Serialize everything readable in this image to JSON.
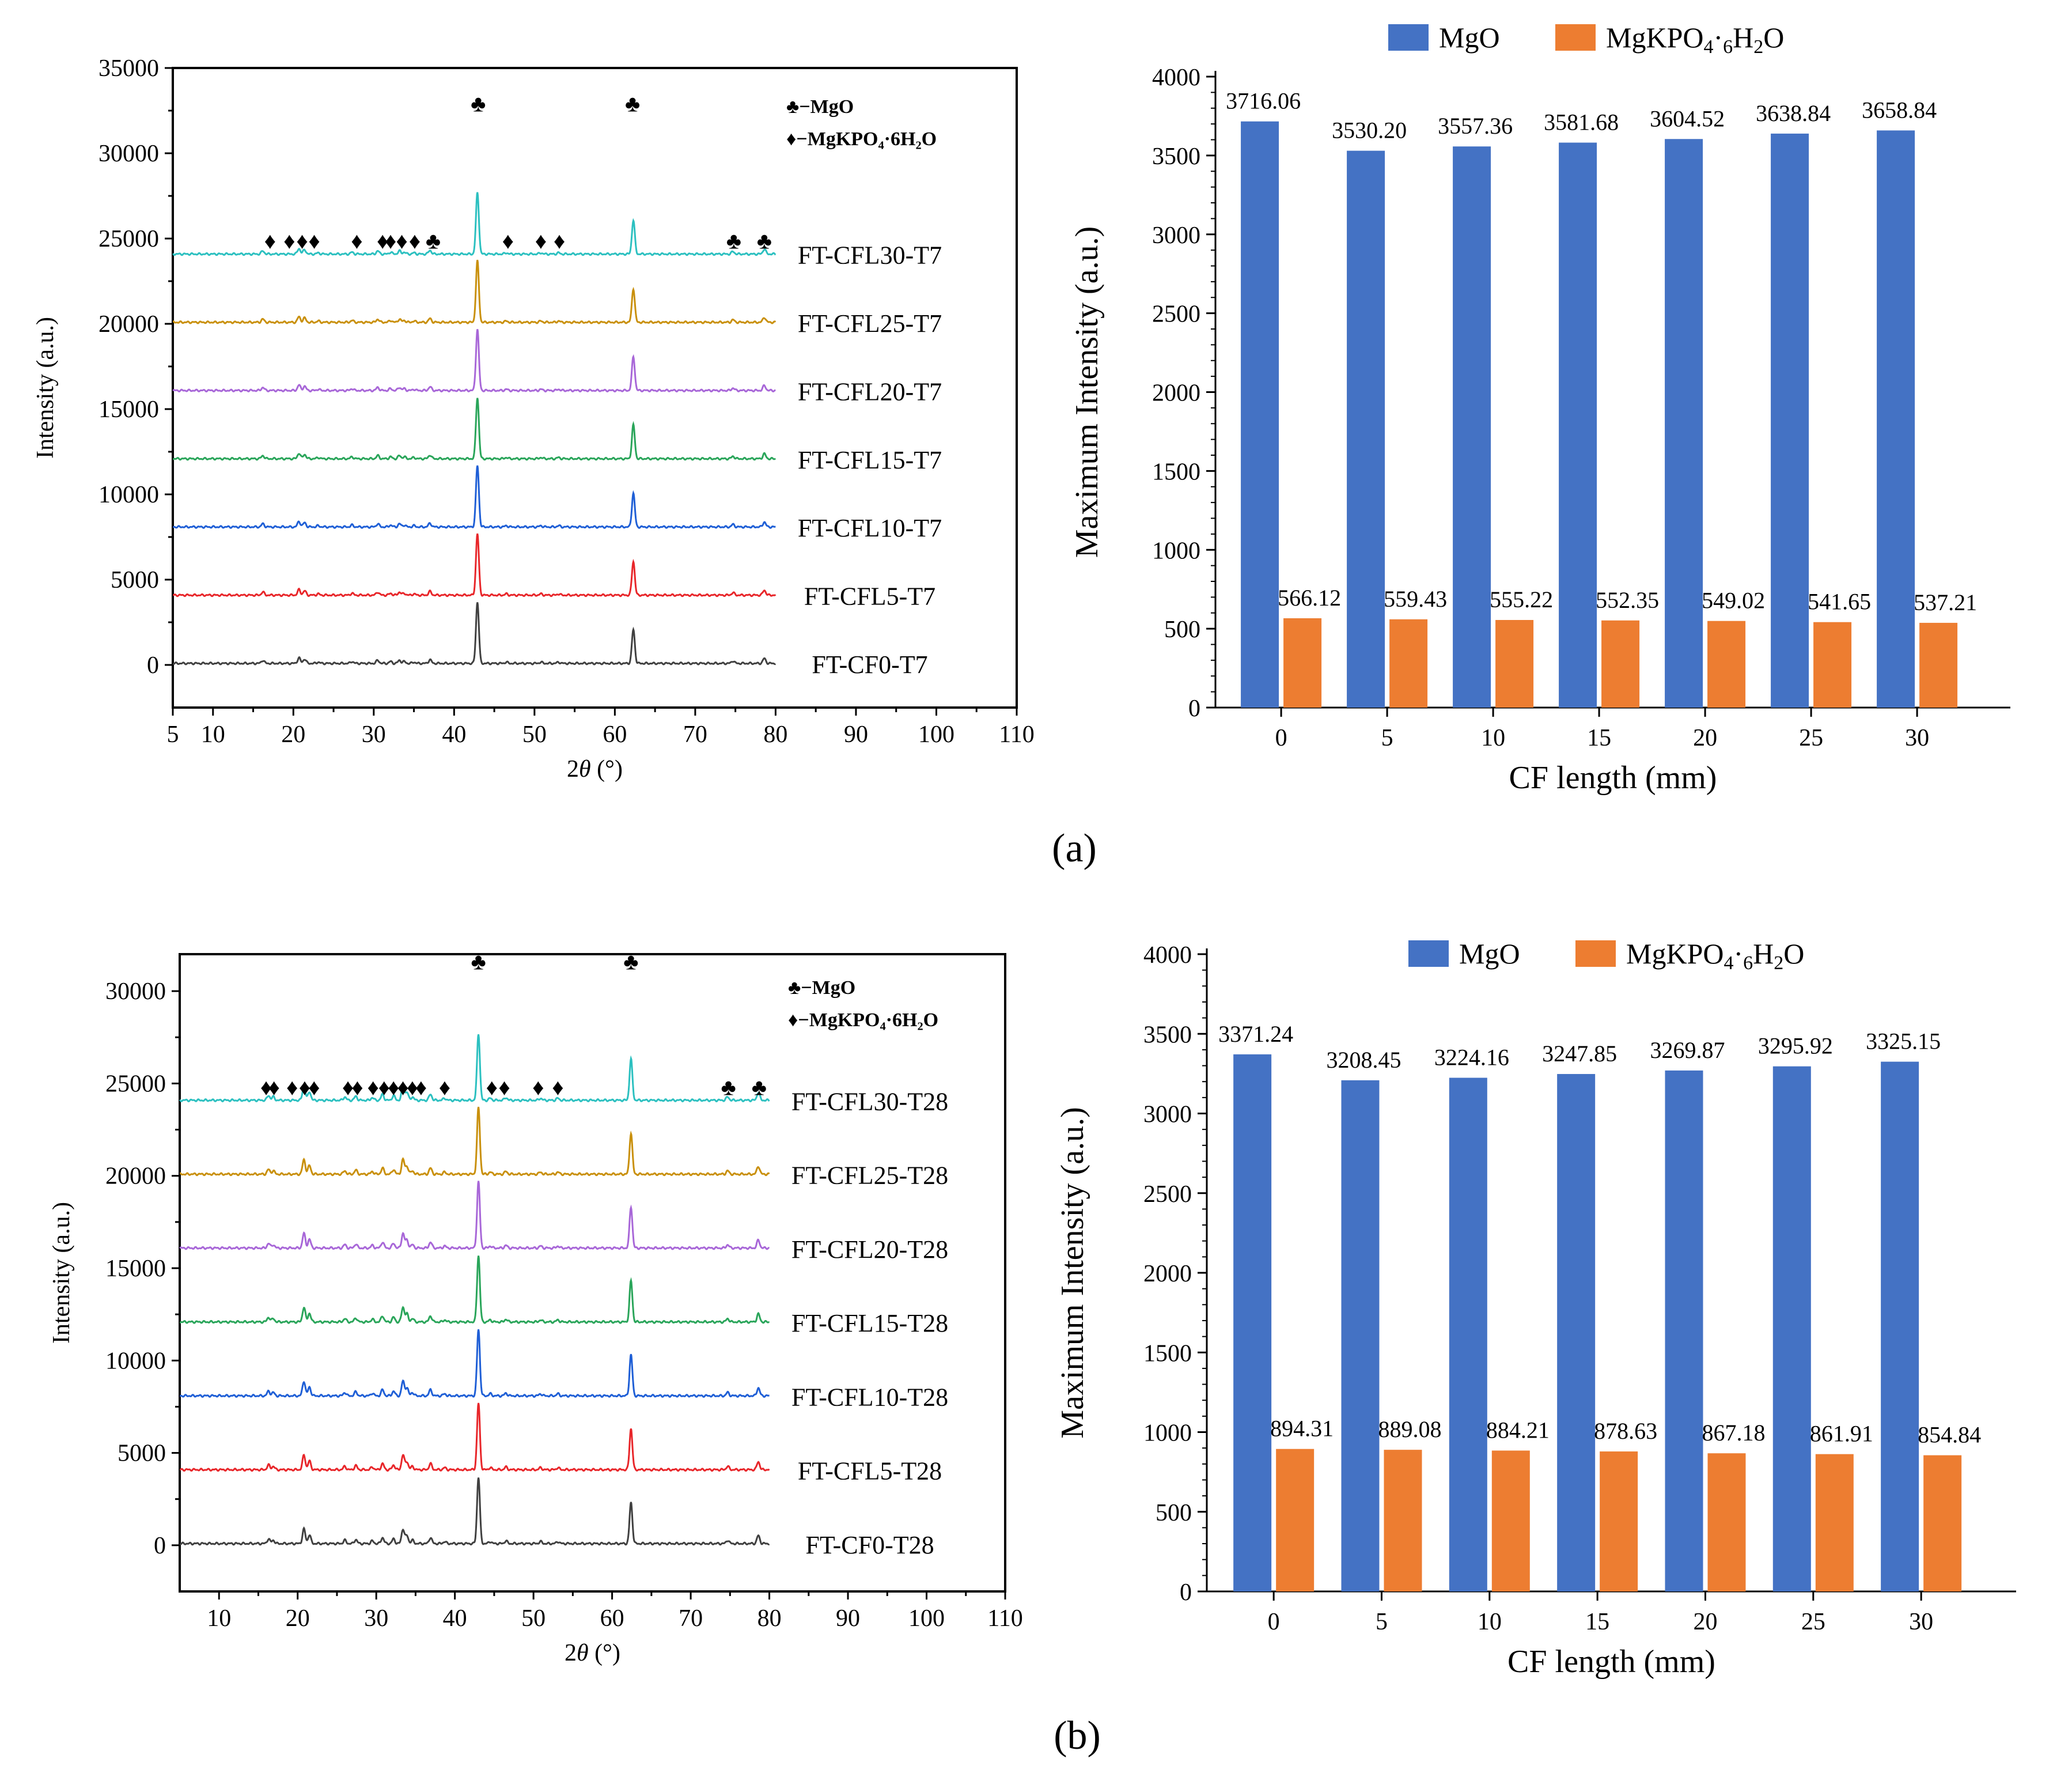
{
  "panel_labels": [
    "(a)",
    "(b)"
  ],
  "chart_data": [
    {
      "id": "xrd_a",
      "type": "line",
      "xlabel": "2θ (°)",
      "ylabel": "Intensity (a.u.)",
      "xlim": [
        5,
        110
      ],
      "ylim": [
        -2500,
        35000
      ],
      "xticks": [
        5,
        10,
        20,
        30,
        40,
        50,
        60,
        70,
        80,
        90,
        100,
        110
      ],
      "yticks": [
        0,
        5000,
        10000,
        15000,
        20000,
        25000,
        30000,
        35000
      ],
      "legend": [
        {
          "symbol": "♣",
          "text": "−MgO"
        },
        {
          "symbol": "♦",
          "text": "−MgKPO₄·6H₂O"
        }
      ],
      "series": [
        {
          "name": "FT-CF0-T7",
          "offset": 0,
          "color": "#404040"
        },
        {
          "name": "FT-CFL5-T7",
          "offset": 4000,
          "color": "#e8262a"
        },
        {
          "name": "FT-CFL10-T7",
          "offset": 8000,
          "color": "#1f5fd6"
        },
        {
          "name": "FT-CFL15-T7",
          "offset": 12000,
          "color": "#2aa55a"
        },
        {
          "name": "FT-CFL20-T7",
          "offset": 16000,
          "color": "#a867d8"
        },
        {
          "name": "FT-CFL25-T7",
          "offset": 20000,
          "color": "#c9900c"
        },
        {
          "name": "FT-CFL30-T7",
          "offset": 24000,
          "color": "#2cc0c0"
        }
      ],
      "peaks": [
        [
          16.2,
          0.05
        ],
        [
          20.7,
          0.09
        ],
        [
          21.4,
          0.07
        ],
        [
          23.1,
          0.02
        ],
        [
          27.3,
          0.03
        ],
        [
          30.5,
          0.05
        ],
        [
          32.1,
          0.03
        ],
        [
          33.2,
          0.05
        ],
        [
          33.8,
          0.03
        ],
        [
          35.0,
          0.02
        ],
        [
          37.0,
          0.06
        ],
        [
          42.9,
          1.0
        ],
        [
          46.5,
          0.02
        ],
        [
          50.8,
          0.02
        ],
        [
          53.0,
          0.02
        ],
        [
          62.3,
          0.55
        ],
        [
          74.7,
          0.04
        ],
        [
          78.6,
          0.08
        ]
      ],
      "markers": [
        {
          "symbol": "♦",
          "x": [
            17.1,
            19.5,
            21.1,
            22.6,
            27.9,
            31.1,
            32.1,
            33.5,
            35.1,
            46.7,
            50.8,
            53.1
          ]
        },
        {
          "symbol": "♣",
          "x": [
            37.4,
            43.0,
            62.2,
            74.8,
            78.6
          ]
        }
      ]
    },
    {
      "id": "bar_a",
      "type": "bar",
      "xlabel": "CF length (mm)",
      "ylabel": "Maximum Intensity (a.u.)",
      "ylim": [
        0,
        4000
      ],
      "yticks": [
        0,
        500,
        1000,
        1500,
        2000,
        2500,
        3000,
        3500,
        4000
      ],
      "categories": [
        "0",
        "5",
        "10",
        "15",
        "20",
        "25",
        "30"
      ],
      "legend": [
        "MgO",
        "MgKPO4·6H2O"
      ],
      "series": [
        {
          "name": "MgO",
          "color": "#4472c4",
          "values": [
            3716.06,
            3530.2,
            3557.36,
            3581.68,
            3604.52,
            3638.84,
            3658.84
          ],
          "labels": [
            "3716.06",
            "3530.20",
            "3557.36",
            "3581.68",
            "3604.52",
            "3638.84",
            "3658.84"
          ]
        },
        {
          "name": "MgKPO4·6H2O",
          "color": "#ed7d31",
          "values": [
            566.12,
            559.43,
            555.22,
            552.35,
            549.02,
            541.65,
            537.21
          ],
          "labels": [
            "566.12",
            "559.43",
            "555.22",
            "552.35",
            "549.02",
            "541.65",
            "537.21"
          ]
        }
      ]
    },
    {
      "id": "xrd_b",
      "type": "line",
      "xlabel": "2θ (°)",
      "ylabel": "Intensity (a.u.)",
      "xlim": [
        5,
        110
      ],
      "ylim": [
        -2500,
        32000
      ],
      "xticks": [
        10,
        20,
        30,
        40,
        50,
        60,
        70,
        80,
        90,
        100,
        110
      ],
      "yticks": [
        0,
        5000,
        10000,
        15000,
        20000,
        25000,
        30000
      ],
      "legend": [
        {
          "symbol": "♣",
          "text": "−MgO"
        },
        {
          "symbol": "♦",
          "text": "−MgKPO₄·6H₂O"
        }
      ],
      "series": [
        {
          "name": "FT-CF0-T28",
          "offset": 0,
          "color": "#404040"
        },
        {
          "name": "FT-CFL5-T28",
          "offset": 4000,
          "color": "#e8262a"
        },
        {
          "name": "FT-CFL10-T28",
          "offset": 8000,
          "color": "#1f5fd6"
        },
        {
          "name": "FT-CFL15-T28",
          "offset": 12000,
          "color": "#2aa55a"
        },
        {
          "name": "FT-CFL20-T28",
          "offset": 16000,
          "color": "#a867d8"
        },
        {
          "name": "FT-CFL25-T28",
          "offset": 20000,
          "color": "#c9900c"
        },
        {
          "name": "FT-CFL30-T28",
          "offset": 24000,
          "color": "#2cc0c0"
        }
      ],
      "peaks": [
        [
          16.3,
          0.07
        ],
        [
          16.9,
          0.05
        ],
        [
          20.8,
          0.22
        ],
        [
          21.5,
          0.13
        ],
        [
          26.0,
          0.05
        ],
        [
          27.4,
          0.06
        ],
        [
          29.5,
          0.04
        ],
        [
          30.8,
          0.09
        ],
        [
          32.2,
          0.07
        ],
        [
          33.4,
          0.22
        ],
        [
          33.9,
          0.12
        ],
        [
          34.6,
          0.05
        ],
        [
          36.9,
          0.09
        ],
        [
          38.7,
          0.03
        ],
        [
          43.0,
          1.0
        ],
        [
          44.5,
          0.03
        ],
        [
          46.5,
          0.04
        ],
        [
          50.9,
          0.03
        ],
        [
          53.1,
          0.03
        ],
        [
          62.4,
          0.62
        ],
        [
          74.7,
          0.05
        ],
        [
          78.6,
          0.12
        ]
      ],
      "markers": [
        {
          "symbol": "♦",
          "x": [
            16.0,
            17.0,
            19.3,
            20.9,
            22.1,
            26.4,
            27.6,
            29.6,
            31.0,
            32.2,
            33.4,
            34.6,
            35.7,
            38.7,
            44.7,
            46.3,
            50.6,
            53.1
          ]
        },
        {
          "symbol": "♣",
          "x": [
            43.0,
            62.4,
            74.8,
            78.7
          ]
        }
      ]
    },
    {
      "id": "bar_b",
      "type": "bar",
      "xlabel": "CF length (mm)",
      "ylabel": "Maximum Intensity (a.u.)",
      "ylim": [
        0,
        4000
      ],
      "yticks": [
        0,
        500,
        1000,
        1500,
        2000,
        2500,
        3000,
        3500,
        4000
      ],
      "categories": [
        "0",
        "5",
        "10",
        "15",
        "20",
        "25",
        "30"
      ],
      "legend": [
        "MgO",
        "MgKPO4·6H2O"
      ],
      "series": [
        {
          "name": "MgO",
          "color": "#4472c4",
          "values": [
            3371.24,
            3208.45,
            3224.16,
            3247.85,
            3269.87,
            3295.92,
            3325.15
          ],
          "labels": [
            "3371.24",
            "3208.45",
            "3224.16",
            "3247.85",
            "3269.87",
            "3295.92",
            "3325.15"
          ]
        },
        {
          "name": "MgKPO4·6H2O",
          "color": "#ed7d31",
          "values": [
            894.31,
            889.08,
            884.21,
            878.63,
            867.18,
            861.91,
            854.84
          ],
          "labels": [
            "894.31",
            "889.08",
            "884.21",
            "878.63",
            "867.18",
            "861.91",
            "854.84"
          ]
        }
      ]
    }
  ]
}
